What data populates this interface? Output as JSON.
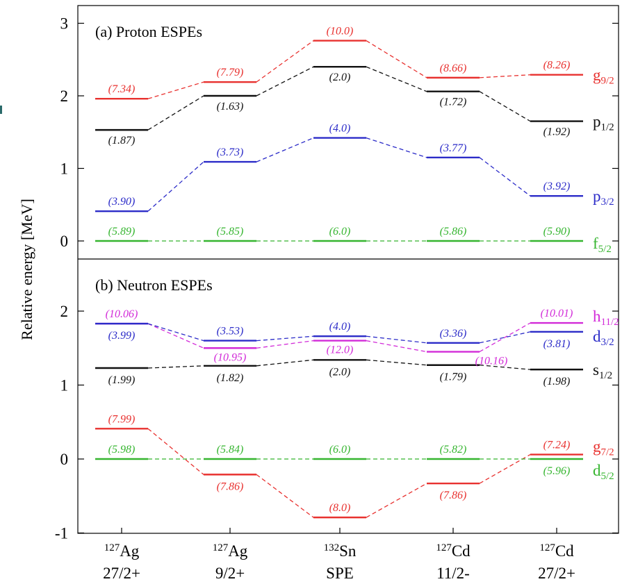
{
  "chart_data": {
    "type": "level-scheme",
    "ylabel": "Relative energy [MeV]",
    "categories": [
      {
        "nucleus": "Ag",
        "mass": "127",
        "state": "27/2+"
      },
      {
        "nucleus": "Ag",
        "mass": "127",
        "state": "9/2+"
      },
      {
        "nucleus": "Sn",
        "mass": "132",
        "state": "SPE"
      },
      {
        "nucleus": "Cd",
        "mass": "127",
        "state": "11/2-"
      },
      {
        "nucleus": "Cd",
        "mass": "127",
        "state": "27/2+"
      }
    ],
    "panels": [
      {
        "title": "(a) Proton ESPEs",
        "ylim": [
          -0.25,
          3.25
        ],
        "yticks": [
          0,
          1,
          2,
          3
        ],
        "ytick_labels": [
          "0",
          "1",
          "2",
          "3"
        ],
        "series": [
          {
            "orbital": "g",
            "subscript": "9/2",
            "color": "#e8302e",
            "values": [
              1.96,
              2.19,
              2.76,
              2.25,
              2.29
            ],
            "labels": [
              "(7.34)",
              "(7.79)",
              "(10.0)",
              "(8.66)",
              "(8.26)"
            ]
          },
          {
            "orbital": "p",
            "subscript": "1/2",
            "color": "#111111",
            "values": [
              1.53,
              2.0,
              2.4,
              2.06,
              1.65
            ],
            "labels": [
              "(1.87)",
              "(1.63)",
              "(2.0)",
              "(1.72)",
              "(1.92)"
            ]
          },
          {
            "orbital": "p",
            "subscript": "3/2",
            "color": "#2b2bc8",
            "values": [
              0.41,
              1.09,
              1.42,
              1.15,
              0.62
            ],
            "labels": [
              "(3.90)",
              "(3.73)",
              "(4.0)",
              "(3.77)",
              "(3.92)"
            ]
          },
          {
            "orbital": "f",
            "subscript": "5/2",
            "color": "#35b52f",
            "values": [
              0.0,
              0.0,
              0.0,
              0.0,
              0.0
            ],
            "labels": [
              "(5.89)",
              "(5.85)",
              "(6.0)",
              "(5.86)",
              "(5.90)"
            ]
          }
        ]
      },
      {
        "title": "(b) Neutron ESPEs",
        "ylim": [
          -1.0,
          2.75
        ],
        "yticks": [
          -1,
          0,
          1,
          2
        ],
        "ytick_labels": [
          "-1",
          "0",
          "1",
          "2"
        ],
        "series": [
          {
            "orbital": "h",
            "subscript": "11/2",
            "color": "#d22ad8",
            "values": [
              1.83,
              1.5,
              1.6,
              1.45,
              1.84
            ],
            "labels": [
              "(10.06)",
              "(10.95)",
              "(12.0)",
              "(10.16)",
              "(10.01)"
            ]
          },
          {
            "orbital": "d",
            "subscript": "3/2",
            "color": "#2b2bc8",
            "values": [
              1.83,
              1.6,
              1.66,
              1.57,
              1.72
            ],
            "labels": [
              "(3.99)",
              "(3.53)",
              "(4.0)",
              "(3.36)",
              "(3.81)"
            ]
          },
          {
            "orbital": "s",
            "subscript": "1/2",
            "color": "#111111",
            "values": [
              1.23,
              1.26,
              1.34,
              1.27,
              1.21
            ],
            "labels": [
              "(1.99)",
              "(1.82)",
              "(2.0)",
              "(1.79)",
              "(1.98)"
            ]
          },
          {
            "orbital": "g",
            "subscript": "7/2",
            "color": "#e8302e",
            "values": [
              0.41,
              -0.21,
              -0.79,
              -0.33,
              0.06
            ],
            "labels": [
              "(7.99)",
              "(7.86)",
              "(8.0)",
              "(7.86)",
              "(7.24)"
            ]
          },
          {
            "orbital": "d",
            "subscript": "5/2",
            "color": "#35b52f",
            "values": [
              0.0,
              0.0,
              0.0,
              0.0,
              0.0
            ],
            "labels": [
              "(5.98)",
              "(5.84)",
              "(6.0)",
              "(5.82)",
              "(5.96)"
            ]
          }
        ]
      }
    ]
  }
}
